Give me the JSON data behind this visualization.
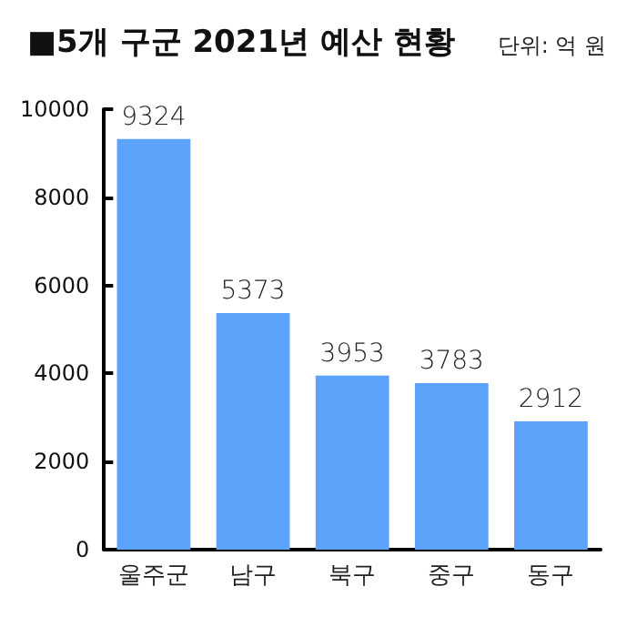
{
  "chart_data": {
    "type": "bar",
    "title": "■5개 구군 2021년 예산 현황",
    "annotations": [
      "단위: 억 원"
    ],
    "categories": [
      "울주군",
      "남구",
      "북구",
      "중구",
      "동구"
    ],
    "values": [
      9324,
      5373,
      3953,
      3783,
      2912
    ],
    "color": "#5ba3fb",
    "ylim": [
      0,
      10000
    ],
    "yticks": [
      0,
      2000,
      4000,
      6000,
      8000,
      10000
    ],
    "grid": false,
    "data_labels": true
  }
}
